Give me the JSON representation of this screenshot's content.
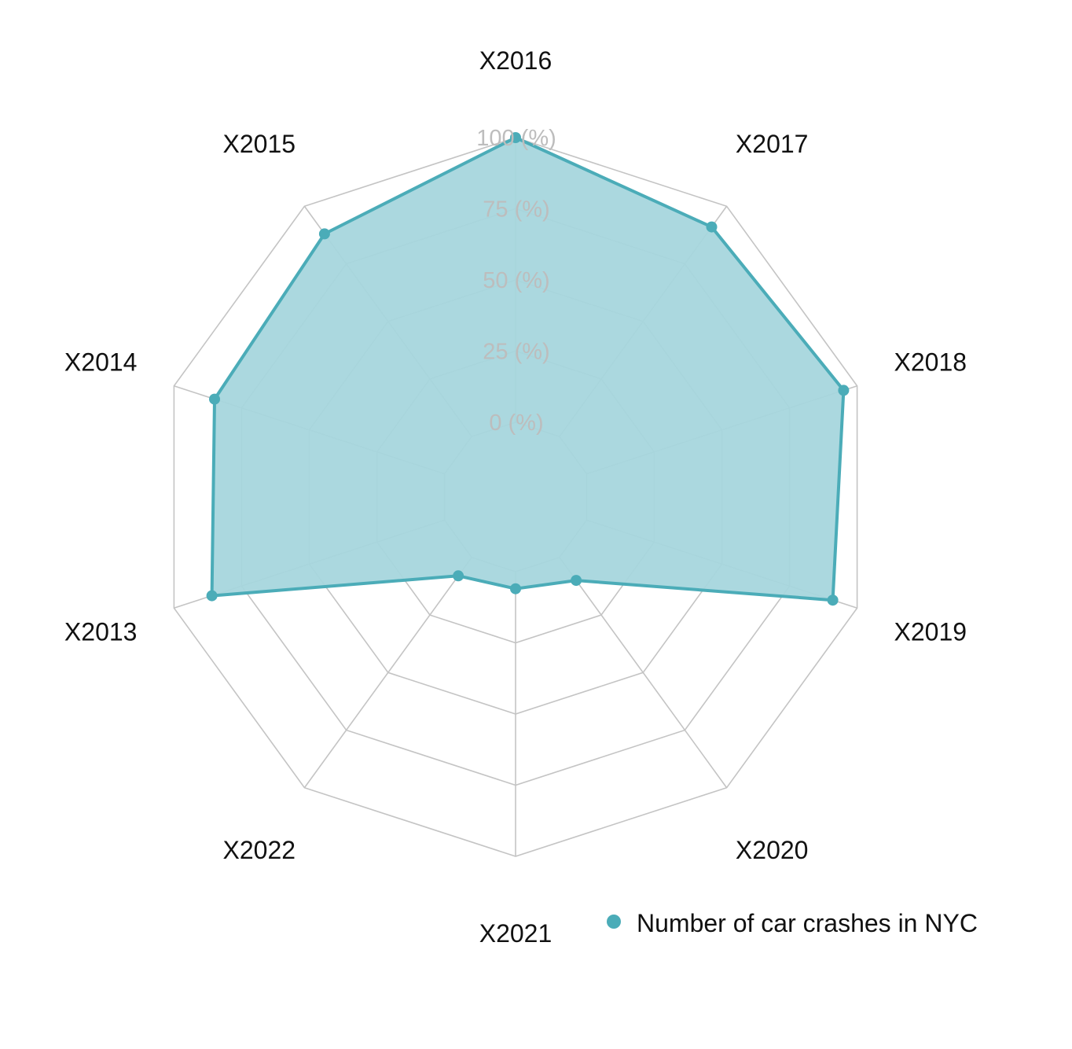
{
  "chart_data": {
    "type": "radar",
    "title": "",
    "categories": [
      "X2013",
      "X2014",
      "X2015",
      "X2016",
      "X2017",
      "X2018",
      "X2019",
      "X2020",
      "X2021",
      "X2022"
    ],
    "series": [
      {
        "name": "Number of car crashes in NYC",
        "values": [
          86,
          85,
          88,
          100,
          91,
          95,
          91,
          10,
          6,
          8
        ]
      }
    ],
    "rlim": [
      0,
      100
    ],
    "ring_values": [
      0,
      25,
      50,
      75,
      100
    ],
    "ring_labels": [
      "0 (%)",
      "25 (%)",
      "50 (%)",
      "75 (%)",
      "100 (%)"
    ],
    "grid": true,
    "legend_position": "bottom-right",
    "colors": {
      "series": "#4bacb8",
      "fill": "#a6d6dd",
      "grid": "#c4c4c4",
      "ring_label": "#bdbdbd"
    }
  }
}
